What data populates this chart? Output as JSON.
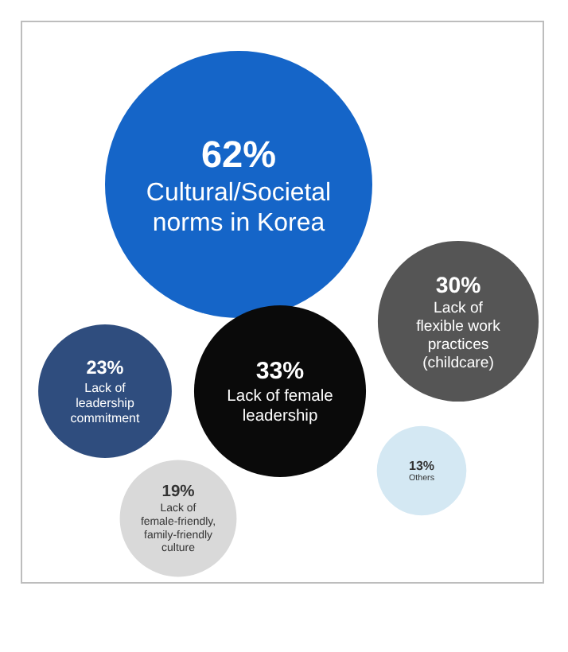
{
  "chart_data": {
    "type": "other",
    "categories": [
      "Cultural/Societal norms in Korea",
      "Lack of flexible work practices (childcare)",
      "Lack of leadership commitment",
      "Lack of female leadership",
      "Others",
      "Lack of female-friendly, family-friendly culture"
    ],
    "values": [
      62,
      30,
      23,
      33,
      13,
      19
    ],
    "value_labels": [
      "62%",
      "30%",
      "23%",
      "33%",
      "13%",
      "19%"
    ],
    "colors": [
      "#1565c8",
      "#555555",
      "#2f4d7e",
      "#0a0a0a",
      "#d4e8f3",
      "#d9d9d9"
    ]
  }
}
